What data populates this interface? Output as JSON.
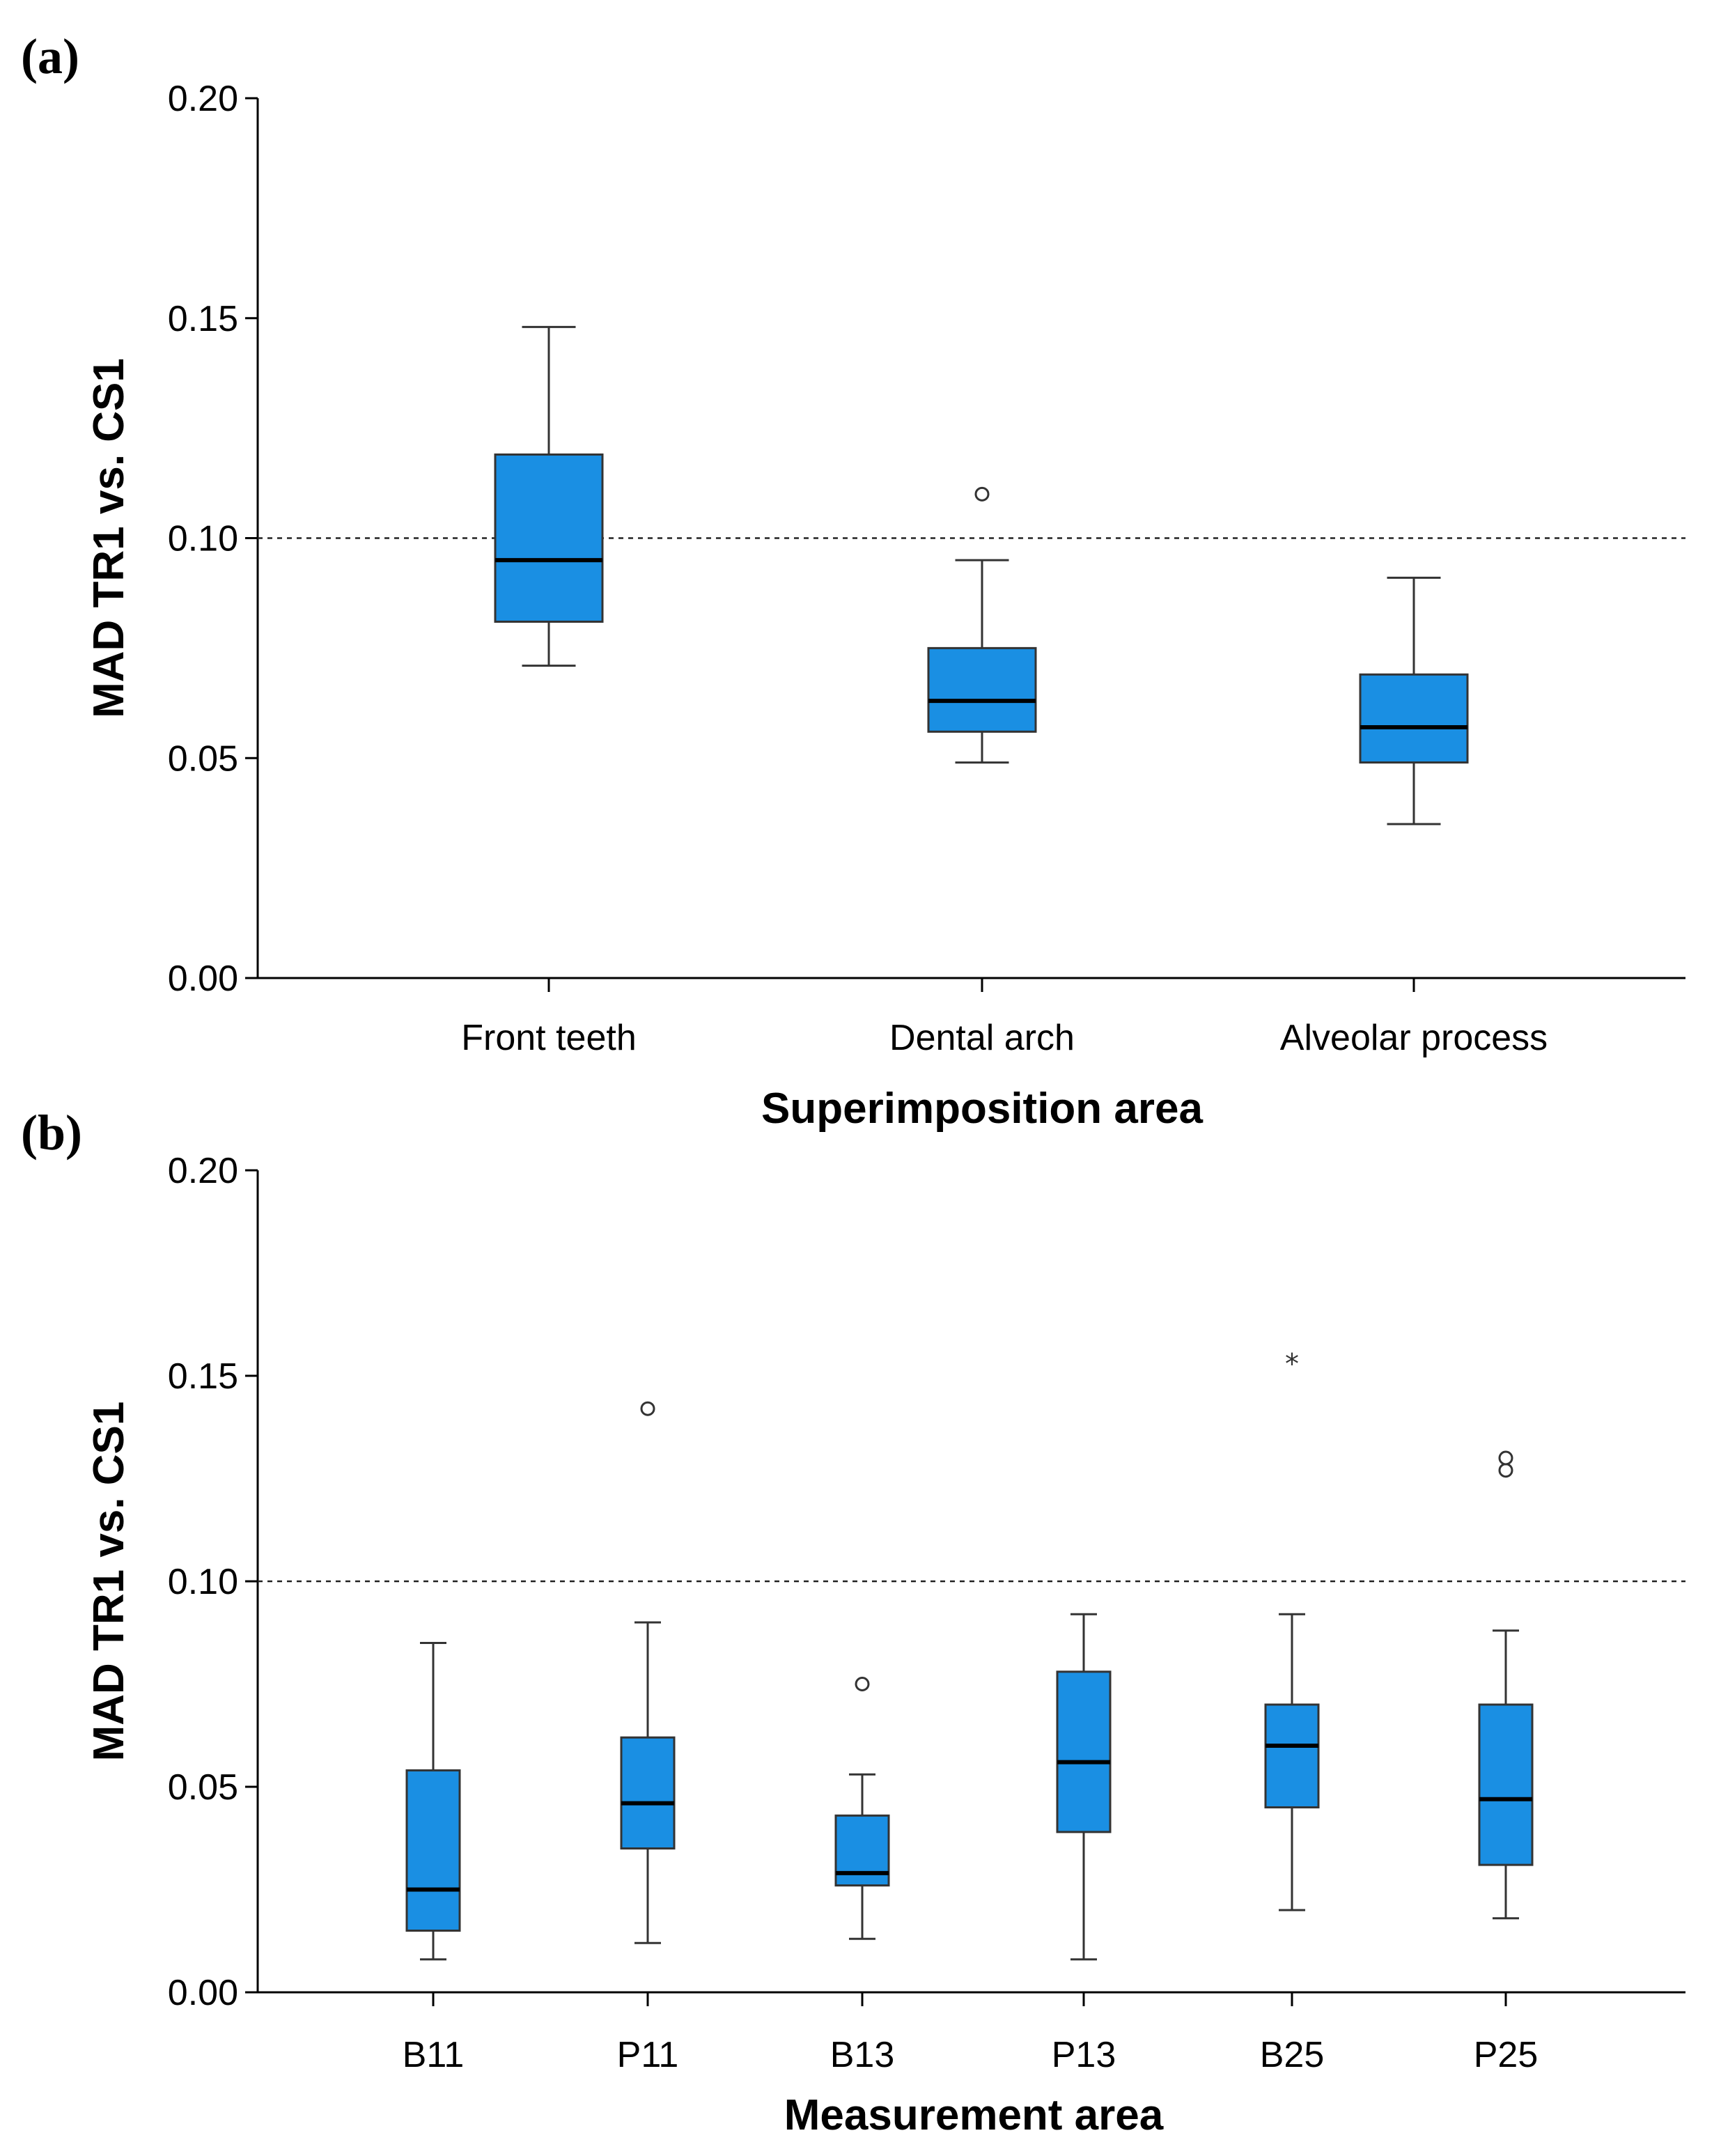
{
  "colors": {
    "box_fill": "#1a8fe3",
    "box_stroke": "#333333",
    "median": "#000000",
    "reference_line": "#222222"
  },
  "chart_data": [
    {
      "type": "boxplot",
      "panel_label": "(a)",
      "title": "",
      "xlabel": "Superimposition area",
      "ylabel": "MAD TR1 vs. CS1",
      "ylim": [
        0,
        0.2
      ],
      "yticks": [
        "0.00",
        "0.05",
        "0.10",
        "0.15",
        "0.20"
      ],
      "ytick_values": [
        0,
        0.05,
        0.1,
        0.15,
        0.2
      ],
      "reference_line": 0.1,
      "categories": [
        "Front teeth",
        "Dental arch",
        "Alveolar process"
      ],
      "boxes": [
        {
          "category": "Front teeth",
          "whisker_low": 0.071,
          "q1": 0.081,
          "median": 0.095,
          "q3": 0.119,
          "whisker_high": 0.148,
          "outliers": [],
          "extremes": []
        },
        {
          "category": "Dental arch",
          "whisker_low": 0.049,
          "q1": 0.056,
          "median": 0.063,
          "q3": 0.075,
          "whisker_high": 0.095,
          "outliers": [
            0.11
          ],
          "extremes": []
        },
        {
          "category": "Alveolar process",
          "whisker_low": 0.035,
          "q1": 0.049,
          "median": 0.057,
          "q3": 0.069,
          "whisker_high": 0.091,
          "outliers": [],
          "extremes": []
        }
      ]
    },
    {
      "type": "boxplot",
      "panel_label": "(b)",
      "title": "",
      "xlabel": "Measurement area",
      "ylabel": "MAD TR1 vs. CS1",
      "ylim": [
        0,
        0.2
      ],
      "yticks": [
        "0.00",
        "0.05",
        "0.10",
        "0.15",
        "0.20"
      ],
      "ytick_values": [
        0,
        0.05,
        0.1,
        0.15,
        0.2
      ],
      "reference_line": 0.1,
      "categories": [
        "B11",
        "P11",
        "B13",
        "P13",
        "B25",
        "P25"
      ],
      "boxes": [
        {
          "category": "B11",
          "whisker_low": 0.008,
          "q1": 0.015,
          "median": 0.025,
          "q3": 0.054,
          "whisker_high": 0.085,
          "outliers": [],
          "extremes": []
        },
        {
          "category": "P11",
          "whisker_low": 0.012,
          "q1": 0.035,
          "median": 0.046,
          "q3": 0.062,
          "whisker_high": 0.09,
          "outliers": [
            0.142
          ],
          "extremes": []
        },
        {
          "category": "B13",
          "whisker_low": 0.013,
          "q1": 0.026,
          "median": 0.029,
          "q3": 0.043,
          "whisker_high": 0.053,
          "outliers": [
            0.075
          ],
          "extremes": []
        },
        {
          "category": "P13",
          "whisker_low": 0.008,
          "q1": 0.039,
          "median": 0.056,
          "q3": 0.078,
          "whisker_high": 0.092,
          "outliers": [],
          "extremes": []
        },
        {
          "category": "B25",
          "whisker_low": 0.02,
          "q1": 0.045,
          "median": 0.06,
          "q3": 0.07,
          "whisker_high": 0.092,
          "outliers": [],
          "extremes": [
            0.153
          ]
        },
        {
          "category": "P25",
          "whisker_low": 0.018,
          "q1": 0.031,
          "median": 0.047,
          "q3": 0.07,
          "whisker_high": 0.088,
          "outliers": [
            0.127,
            0.13
          ],
          "extremes": []
        }
      ]
    }
  ]
}
